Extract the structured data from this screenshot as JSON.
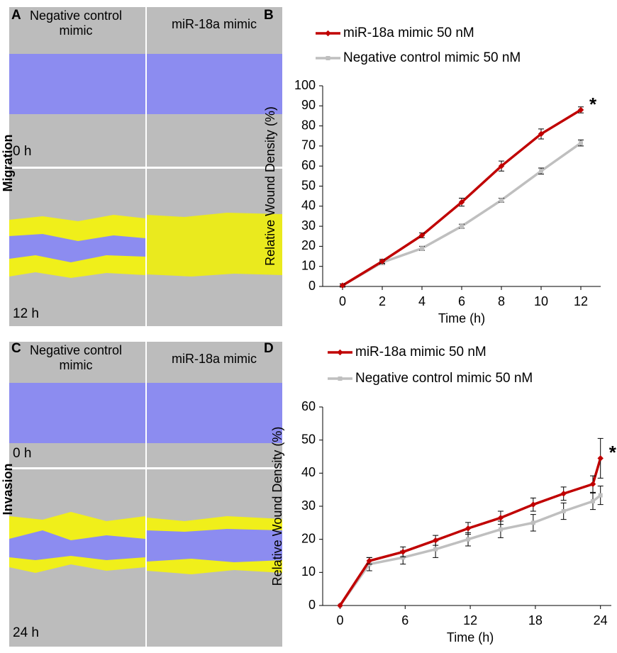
{
  "panels": {
    "A": {
      "label": "A",
      "row_label": "Migration",
      "columns": [
        "Negative control mimic",
        "miR-18a mimic"
      ],
      "times": [
        "0 h",
        "12 h"
      ]
    },
    "C": {
      "label": "C",
      "row_label": "Invasion",
      "columns": [
        "Negative control mimic",
        "miR-18a mimic"
      ],
      "times": [
        "0 h",
        "24 h"
      ]
    }
  },
  "chart_data": [
    {
      "type": "line",
      "label": "B",
      "x_label": "Time (h)",
      "y_label": "Relative Wound Density (%)",
      "annotation": "*",
      "x": [
        0,
        2,
        4,
        6,
        8,
        10,
        12
      ],
      "series": [
        {
          "name": "miR-18a mimic 50 nM",
          "color": "#c00000",
          "values": [
            0.5,
            12.5,
            25.5,
            42,
            60,
            76,
            88
          ],
          "errors": [
            0.8,
            1,
            1.2,
            2,
            2.5,
            2.5,
            1.5
          ]
        },
        {
          "name": "Negative control mimic 50 nM",
          "color": "#bfbfbf",
          "values": [
            0.5,
            12,
            19,
            30,
            43,
            57.5,
            71.5
          ],
          "errors": [
            0.8,
            1,
            1,
            1,
            1,
            1.5,
            1.5
          ]
        }
      ],
      "xlim": [
        -1,
        13
      ],
      "ylim": [
        0,
        100
      ],
      "xticks": [
        0,
        2,
        4,
        6,
        8,
        10,
        12
      ],
      "yticks": [
        0,
        10,
        20,
        30,
        40,
        50,
        60,
        70,
        80,
        90,
        100
      ]
    },
    {
      "type": "line",
      "label": "D",
      "x_label": "Time (h)",
      "y_label": "Relative Wound Density (%)",
      "annotation": "*",
      "x": [
        0,
        2.7,
        5.8,
        8.8,
        11.8,
        14.8,
        17.8,
        20.6,
        23.3,
        24
      ],
      "series": [
        {
          "name": "miR-18a mimic 50 nM",
          "color": "#c00000",
          "values": [
            0,
            13.5,
            16.2,
            19.7,
            23.3,
            26.5,
            30.5,
            33.8,
            36.7,
            44.5
          ],
          "errors": [
            0,
            1,
            1.5,
            1.5,
            1.8,
            2,
            2,
            2,
            2.5,
            6
          ]
        },
        {
          "name": "Negative control mimic 50 nM",
          "color": "#bfbfbf",
          "values": [
            0,
            12.5,
            14.5,
            17,
            20,
            23,
            25,
            28.5,
            31.5,
            33.3
          ],
          "errors": [
            0,
            2,
            2,
            2.5,
            2,
            2.5,
            2.5,
            2.5,
            2.5,
            2.8
          ]
        }
      ],
      "xlim": [
        -1.6,
        25
      ],
      "ylim": [
        0,
        60
      ],
      "xticks": [
        0,
        6,
        12,
        18,
        24
      ],
      "yticks": [
        0,
        10,
        20,
        30,
        40,
        50,
        60
      ]
    }
  ]
}
